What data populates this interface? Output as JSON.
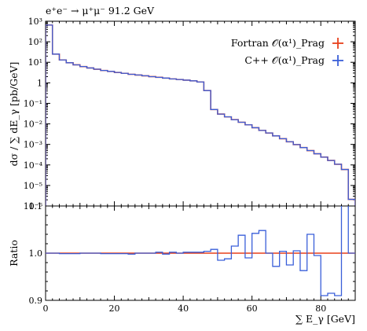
{
  "chart_data": [
    {
      "type": "line",
      "step": true,
      "title": "e⁺e⁻ → μ⁺μ⁻ 91.2 GeV",
      "ylabel": "dσ / ∑ dE_γ [pb/GeV]",
      "yscale": "log",
      "xlim": [
        0,
        90
      ],
      "ylim": [
        1e-06,
        1000
      ],
      "yticks": [
        "10³",
        "10²",
        "10¹",
        "1",
        "10⁻¹",
        "10⁻²",
        "10⁻³",
        "10⁻⁴",
        "10⁻⁵",
        "10⁻⁶"
      ],
      "legend_position": "top-right",
      "bin_edges": [
        0,
        2,
        4,
        6,
        8,
        10,
        12,
        14,
        16,
        18,
        20,
        22,
        24,
        26,
        28,
        30,
        32,
        34,
        36,
        38,
        40,
        42,
        44,
        46,
        48,
        50,
        52,
        54,
        56,
        58,
        60,
        62,
        64,
        66,
        68,
        70,
        72,
        74,
        76,
        78,
        80,
        82,
        84,
        86,
        88,
        90
      ],
      "series": [
        {
          "name": "Fortran 𝒪(α¹)_Prag",
          "color": "#e8401c",
          "marker": "plus",
          "values": [
            650,
            25,
            13,
            9.5,
            7.5,
            6.2,
            5.3,
            4.6,
            4.0,
            3.6,
            3.2,
            2.9,
            2.6,
            2.4,
            2.2,
            2.0,
            1.85,
            1.7,
            1.55,
            1.45,
            1.35,
            1.25,
            1.1,
            0.42,
            0.05,
            0.03,
            0.022,
            0.016,
            0.012,
            0.009,
            0.0065,
            0.0048,
            0.0036,
            0.0026,
            0.0019,
            0.00135,
            0.00098,
            0.0007,
            0.0005,
            0.00035,
            0.00024,
            0.000165,
            0.000108,
            6e-05,
            2.1e-06
          ]
        },
        {
          "name": "C++ 𝒪(α¹)_Prag",
          "color": "#3a5fd9",
          "marker": "plus",
          "values": [
            650,
            25,
            13,
            9.5,
            7.5,
            6.2,
            5.3,
            4.6,
            4.0,
            3.6,
            3.2,
            2.9,
            2.6,
            2.4,
            2.2,
            2.0,
            1.85,
            1.7,
            1.55,
            1.45,
            1.35,
            1.25,
            1.1,
            0.42,
            0.05,
            0.03,
            0.022,
            0.016,
            0.012,
            0.009,
            0.0065,
            0.0048,
            0.0036,
            0.0026,
            0.0019,
            0.00135,
            0.00098,
            0.0007,
            0.0005,
            0.00035,
            0.00024,
            0.000165,
            0.000108,
            6e-05,
            2.1e-06
          ]
        }
      ]
    },
    {
      "type": "line",
      "step": true,
      "ylabel": "Ratio",
      "xlabel": "∑ E_γ [GeV]",
      "xlim": [
        0,
        90
      ],
      "ylim": [
        0.9,
        1.1
      ],
      "xticks": [
        "0",
        "20",
        "40",
        "60",
        "80"
      ],
      "yticks": [
        "0.9",
        "1.0",
        "1.1"
      ],
      "reference_line": 1.0,
      "reference_color": "#e8401c",
      "ratio_color": "#3a5fd9",
      "bin_edges": [
        0,
        2,
        4,
        6,
        8,
        10,
        12,
        14,
        16,
        18,
        20,
        22,
        24,
        26,
        28,
        30,
        32,
        34,
        36,
        38,
        40,
        42,
        44,
        46,
        48,
        50,
        52,
        54,
        56,
        58,
        60,
        62,
        64,
        66,
        68,
        70,
        72,
        74,
        76,
        78,
        80,
        82,
        84,
        86,
        88,
        90
      ],
      "values": [
        1.0,
        1.0,
        0.999,
        0.999,
        0.999,
        1.0,
        1.0,
        1.0,
        0.999,
        0.999,
        0.999,
        0.999,
        0.998,
        1.0,
        1.0,
        1.0,
        1.002,
        0.998,
        1.002,
        1.0,
        1.002,
        1.002,
        1.002,
        1.004,
        1.008,
        0.985,
        0.988,
        1.015,
        1.038,
        0.99,
        1.042,
        1.048,
        1.0,
        0.972,
        1.004,
        0.975,
        1.005,
        0.963,
        1.04,
        0.995,
        0.91,
        0.915,
        0.91,
        1.18,
        1.0
      ]
    }
  ]
}
